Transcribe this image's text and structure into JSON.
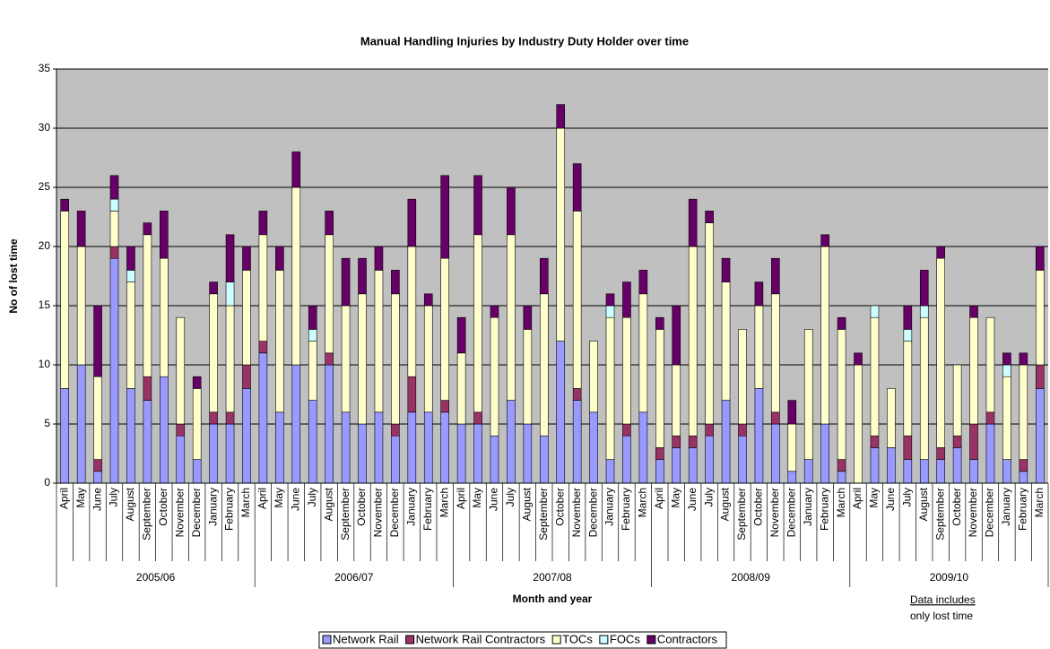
{
  "chart_data": {
    "type": "stacked-bar",
    "title": "Manual Handling Injuries by Industry Duty Holder over time",
    "y_label": "No of lost time",
    "x_label": "Month and year",
    "annotation": [
      "Data includes",
      "only lost time"
    ],
    "categories": [
      "April",
      "May",
      "June",
      "July",
      "August",
      "September",
      "October",
      "November",
      "December",
      "January",
      "February",
      "March",
      "April",
      "May",
      "June",
      "July",
      "August",
      "September",
      "October",
      "November",
      "December",
      "January",
      "February",
      "March",
      "April",
      "May",
      "June",
      "July",
      "August",
      "September",
      "October",
      "November",
      "December",
      "January",
      "February",
      "March",
      "April",
      "May",
      "June",
      "July",
      "August",
      "September",
      "October",
      "November",
      "December",
      "January",
      "February",
      "March",
      "April",
      "May",
      "June",
      "July",
      "August",
      "September",
      "October",
      "November",
      "December",
      "January",
      "February",
      "March"
    ],
    "category_groups": [
      "2005/06",
      "2006/07",
      "2007/08",
      "2008/09",
      "2009/10"
    ],
    "series": [
      {
        "name": "Network Rail",
        "color": "#9999ff",
        "values": [
          8,
          10,
          1,
          19,
          8,
          7,
          9,
          4,
          2,
          5,
          5,
          8,
          11,
          6,
          10,
          7,
          10,
          6,
          5,
          6,
          4,
          6,
          6,
          6,
          5,
          5,
          4,
          7,
          5,
          4,
          12,
          7,
          6,
          2,
          4,
          6,
          2,
          3,
          3,
          4,
          7,
          4,
          8,
          5,
          1,
          2,
          5,
          1,
          0,
          3,
          3,
          2,
          2,
          2,
          3,
          2,
          5,
          2,
          1,
          8
        ]
      },
      {
        "name": "Network Rail Contractors",
        "color": "#993366",
        "values": [
          0,
          0,
          1,
          1,
          0,
          2,
          0,
          1,
          0,
          1,
          1,
          2,
          1,
          0,
          0,
          0,
          1,
          0,
          0,
          0,
          1,
          3,
          0,
          1,
          0,
          1,
          0,
          0,
          0,
          0,
          0,
          1,
          0,
          0,
          1,
          0,
          1,
          1,
          1,
          1,
          0,
          1,
          0,
          1,
          0,
          0,
          0,
          1,
          0,
          1,
          0,
          2,
          0,
          1,
          1,
          3,
          1,
          0,
          1,
          2
        ]
      },
      {
        "name": "TOCs",
        "color": "#ffffcc",
        "values": [
          15,
          10,
          7,
          3,
          9,
          12,
          10,
          9,
          6,
          10,
          9,
          8,
          9,
          12,
          15,
          5,
          10,
          9,
          11,
          12,
          11,
          11,
          9,
          12,
          6,
          15,
          10,
          14,
          8,
          12,
          18,
          15,
          6,
          12,
          9,
          10,
          10,
          6,
          16,
          17,
          10,
          8,
          7,
          10,
          4,
          11,
          15,
          11,
          10,
          10,
          5,
          8,
          12,
          16,
          6,
          9,
          8,
          7,
          8,
          8
        ]
      },
      {
        "name": "FOCs",
        "color": "#ccffff",
        "values": [
          0,
          0,
          0,
          1,
          1,
          0,
          0,
          0,
          0,
          0,
          2,
          0,
          0,
          0,
          0,
          1,
          0,
          0,
          0,
          0,
          0,
          0,
          0,
          0,
          0,
          0,
          0,
          0,
          0,
          0,
          0,
          0,
          0,
          1,
          0,
          0,
          0,
          0,
          0,
          0,
          0,
          0,
          0,
          0,
          0,
          0,
          0,
          0,
          0,
          1,
          0,
          1,
          1,
          0,
          0,
          0,
          0,
          1,
          0,
          0
        ]
      },
      {
        "name": "Contractors",
        "color": "#660066",
        "values": [
          1,
          3,
          6,
          2,
          2,
          1,
          4,
          0,
          1,
          1,
          4,
          2,
          2,
          2,
          3,
          2,
          2,
          4,
          3,
          2,
          2,
          4,
          1,
          7,
          3,
          5,
          1,
          4,
          2,
          3,
          2,
          4,
          0,
          1,
          3,
          2,
          1,
          5,
          4,
          1,
          2,
          0,
          2,
          3,
          2,
          0,
          1,
          1,
          1,
          0,
          0,
          2,
          3,
          1,
          0,
          1,
          0,
          1,
          1,
          2
        ]
      }
    ],
    "ylim": [
      0,
      35
    ],
    "yticks": [
      0,
      5,
      10,
      15,
      20,
      25,
      30,
      35
    ],
    "grid": true,
    "plot_background": "#c0c0c0",
    "legend": "bottom"
  }
}
